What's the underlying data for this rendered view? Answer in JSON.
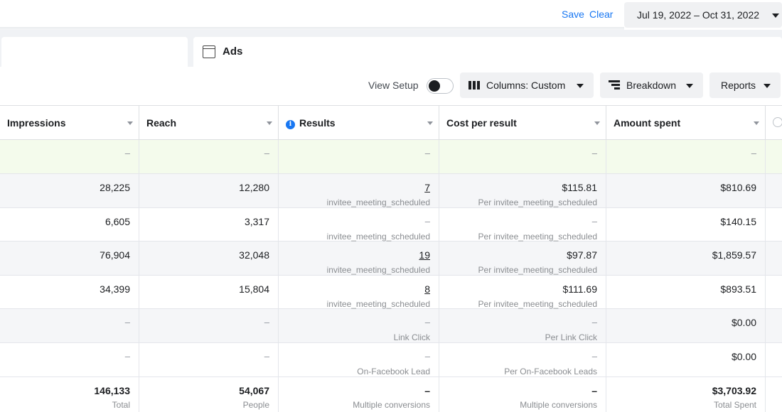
{
  "topbar": {
    "save_label": "Save",
    "clear_label": "Clear",
    "date_range": "Jul 19, 2022 – Oct 31, 2022"
  },
  "tabs": {
    "ads_label": "Ads"
  },
  "toolbar": {
    "view_setup_label": "View Setup",
    "view_setup_on": false,
    "columns_label": "Columns: Custom",
    "breakdown_label": "Breakdown",
    "reports_label": "Reports"
  },
  "table": {
    "headers": [
      "Impressions",
      "Reach",
      "Results",
      "Cost per result",
      "Amount spent"
    ],
    "rows": [
      {
        "impressions": "–",
        "reach": "–",
        "results": "–",
        "results_sub": "",
        "cpr": "–",
        "cpr_sub": "",
        "spent": "–"
      },
      {
        "impressions": "28,225",
        "reach": "12,280",
        "results": "7",
        "results_sub": "invitee_meeting_scheduled",
        "cpr": "$115.81",
        "cpr_sub": "Per invitee_meeting_scheduled",
        "spent": "$810.69"
      },
      {
        "impressions": "6,605",
        "reach": "3,317",
        "results": "–",
        "results_sub": "invitee_meeting_scheduled",
        "cpr": "–",
        "cpr_sub": "Per invitee_meeting_scheduled",
        "spent": "$140.15"
      },
      {
        "impressions": "76,904",
        "reach": "32,048",
        "results": "19",
        "results_sub": "invitee_meeting_scheduled",
        "cpr": "$97.87",
        "cpr_sub": "Per invitee_meeting_scheduled",
        "spent": "$1,859.57"
      },
      {
        "impressions": "34,399",
        "reach": "15,804",
        "results": "8",
        "results_sub": "invitee_meeting_scheduled",
        "cpr": "$111.69",
        "cpr_sub": "Per invitee_meeting_scheduled",
        "spent": "$893.51"
      },
      {
        "impressions": "–",
        "reach": "–",
        "results": "–",
        "results_sub": "Link Click",
        "cpr": "–",
        "cpr_sub": "Per Link Click",
        "spent": "$0.00"
      },
      {
        "impressions": "–",
        "reach": "–",
        "results": "–",
        "results_sub": "On-Facebook Lead",
        "cpr": "–",
        "cpr_sub": "Per On-Facebook Leads",
        "spent": "$0.00"
      }
    ],
    "totals": {
      "impressions": "146,133",
      "impressions_sub": "Total",
      "reach": "54,067",
      "reach_sub": "People",
      "results": "–",
      "results_sub": "Multiple conversions",
      "cpr": "–",
      "cpr_sub": "Multiple conversions",
      "spent": "$3,703.92",
      "spent_sub": "Total Spent"
    }
  }
}
